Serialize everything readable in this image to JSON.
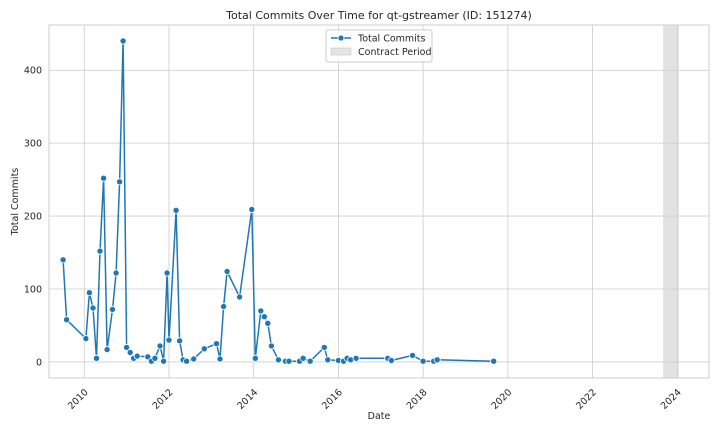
{
  "chart_data": {
    "type": "line",
    "title": "Total Commits Over Time for qt-gstreamer (ID: 151274)",
    "xlabel": "Date",
    "ylabel": "Total Commits",
    "xlim": [
      "2009-03-01",
      "2024-10-01"
    ],
    "ylim": [
      -22,
      462
    ],
    "x_ticks": [
      "2010",
      "2012",
      "2014",
      "2016",
      "2018",
      "2020",
      "2022",
      "2024"
    ],
    "y_ticks": [
      0,
      100,
      200,
      300,
      400
    ],
    "grid": true,
    "legend_position": "top-center",
    "series": [
      {
        "name": "Total Commits",
        "color": "#1f77b4",
        "marker": "circle",
        "x": [
          "2009-07-01",
          "2009-08-01",
          "2010-01-15",
          "2010-02-15",
          "2010-03-15",
          "2010-04-15",
          "2010-05-15",
          "2010-06-15",
          "2010-07-15",
          "2010-09-01",
          "2010-10-01",
          "2010-11-01",
          "2010-12-01",
          "2011-01-01",
          "2011-02-01",
          "2011-03-01",
          "2011-04-01",
          "2011-07-01",
          "2011-08-01",
          "2011-09-01",
          "2011-10-15",
          "2011-11-15",
          "2011-12-15",
          "2012-01-01",
          "2012-03-01",
          "2012-04-01",
          "2012-05-01",
          "2012-06-01",
          "2012-08-01",
          "2012-11-01",
          "2013-02-15",
          "2013-03-15",
          "2013-04-15",
          "2013-05-15",
          "2013-09-01",
          "2013-12-15",
          "2014-01-15",
          "2014-03-01",
          "2014-04-01",
          "2014-05-01",
          "2014-06-01",
          "2014-08-01",
          "2014-10-01",
          "2014-11-01",
          "2015-02-01",
          "2015-03-01",
          "2015-05-01",
          "2015-09-01",
          "2015-10-01",
          "2016-01-01",
          "2016-02-15",
          "2016-03-15",
          "2016-04-15",
          "2016-06-01",
          "2017-03-01",
          "2017-04-01",
          "2017-10-01",
          "2018-01-01",
          "2018-04-01",
          "2018-05-01",
          "2019-09-01"
        ],
        "values": [
          140,
          58,
          32,
          95,
          74,
          5,
          152,
          252,
          17,
          72,
          122,
          247,
          440,
          20,
          13,
          5,
          8,
          7,
          1,
          5,
          22,
          1,
          122,
          30,
          208,
          29,
          3,
          1,
          4,
          18,
          25,
          4,
          76,
          124,
          89,
          209,
          5,
          70,
          62,
          53,
          22,
          3,
          1,
          1,
          1,
          5,
          1,
          20,
          3,
          2,
          1,
          5,
          3,
          5,
          5,
          2,
          9,
          1,
          1,
          3,
          1
        ]
      }
    ],
    "shaded_regions": [
      {
        "name": "Contract Period",
        "x_start": "2023-09-01",
        "x_end": "2024-01-15",
        "color": "#d3d3d3"
      }
    ]
  }
}
